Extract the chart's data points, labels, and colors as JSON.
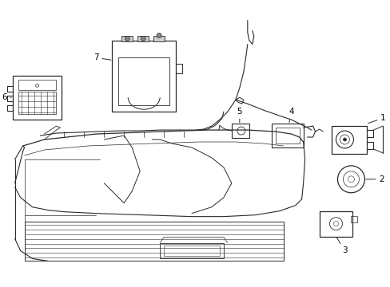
{
  "background_color": "#ffffff",
  "line_color": "#2a2a2a",
  "label_color": "#000000",
  "fig_width": 4.89,
  "fig_height": 3.6,
  "dpi": 100,
  "label_fontsize": 7.5
}
